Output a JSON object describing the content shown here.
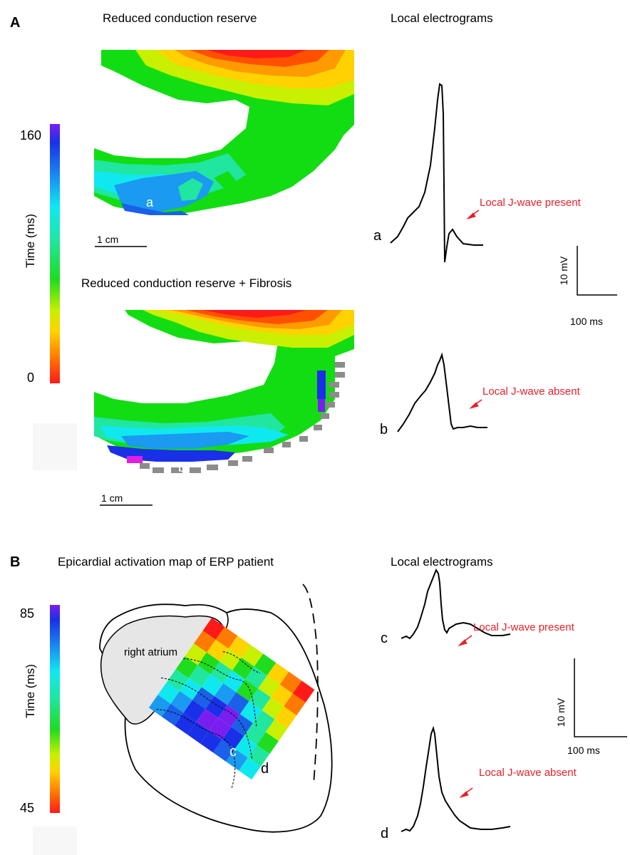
{
  "panel_a": {
    "letter": "A",
    "map_title_1": "Reduced conduction reserve",
    "map_title_2": "Reduced conduction reserve + Fibrosis",
    "egm_title": "Local electrograms",
    "colorbar": {
      "max": "160",
      "min": "0",
      "label": "Time (ms)"
    },
    "scalebar_1": "1 cm",
    "scalebar_2": "1 cm",
    "site_a": "a",
    "site_b": "b",
    "trace_a_label": "a",
    "trace_b_label": "b",
    "annotation_present": "Local J-wave present",
    "annotation_absent": "Local J-wave absent",
    "scale_voltage": "10 mV",
    "scale_time": "100 ms"
  },
  "panel_b": {
    "letter": "B",
    "map_title": "Epicardial activation map of ERP patient",
    "egm_title": "Local electrograms",
    "colorbar": {
      "max": "85",
      "min": "45",
      "label": "Time (ms)"
    },
    "atrium_label": "right atrium",
    "site_c": "c",
    "site_d": "d",
    "trace_c_label": "c",
    "trace_d_label": "d",
    "annotation_present": "Local J-wave present",
    "annotation_absent": "Local J-wave absent",
    "scale_voltage": "10 mV",
    "scale_time": "100 ms"
  },
  "colors": {
    "annotation": "#e8202a",
    "scale_red": "#e8202a",
    "scale_purple": "#6a1ef0",
    "fibrosis_gray": "#8c8c8c"
  }
}
